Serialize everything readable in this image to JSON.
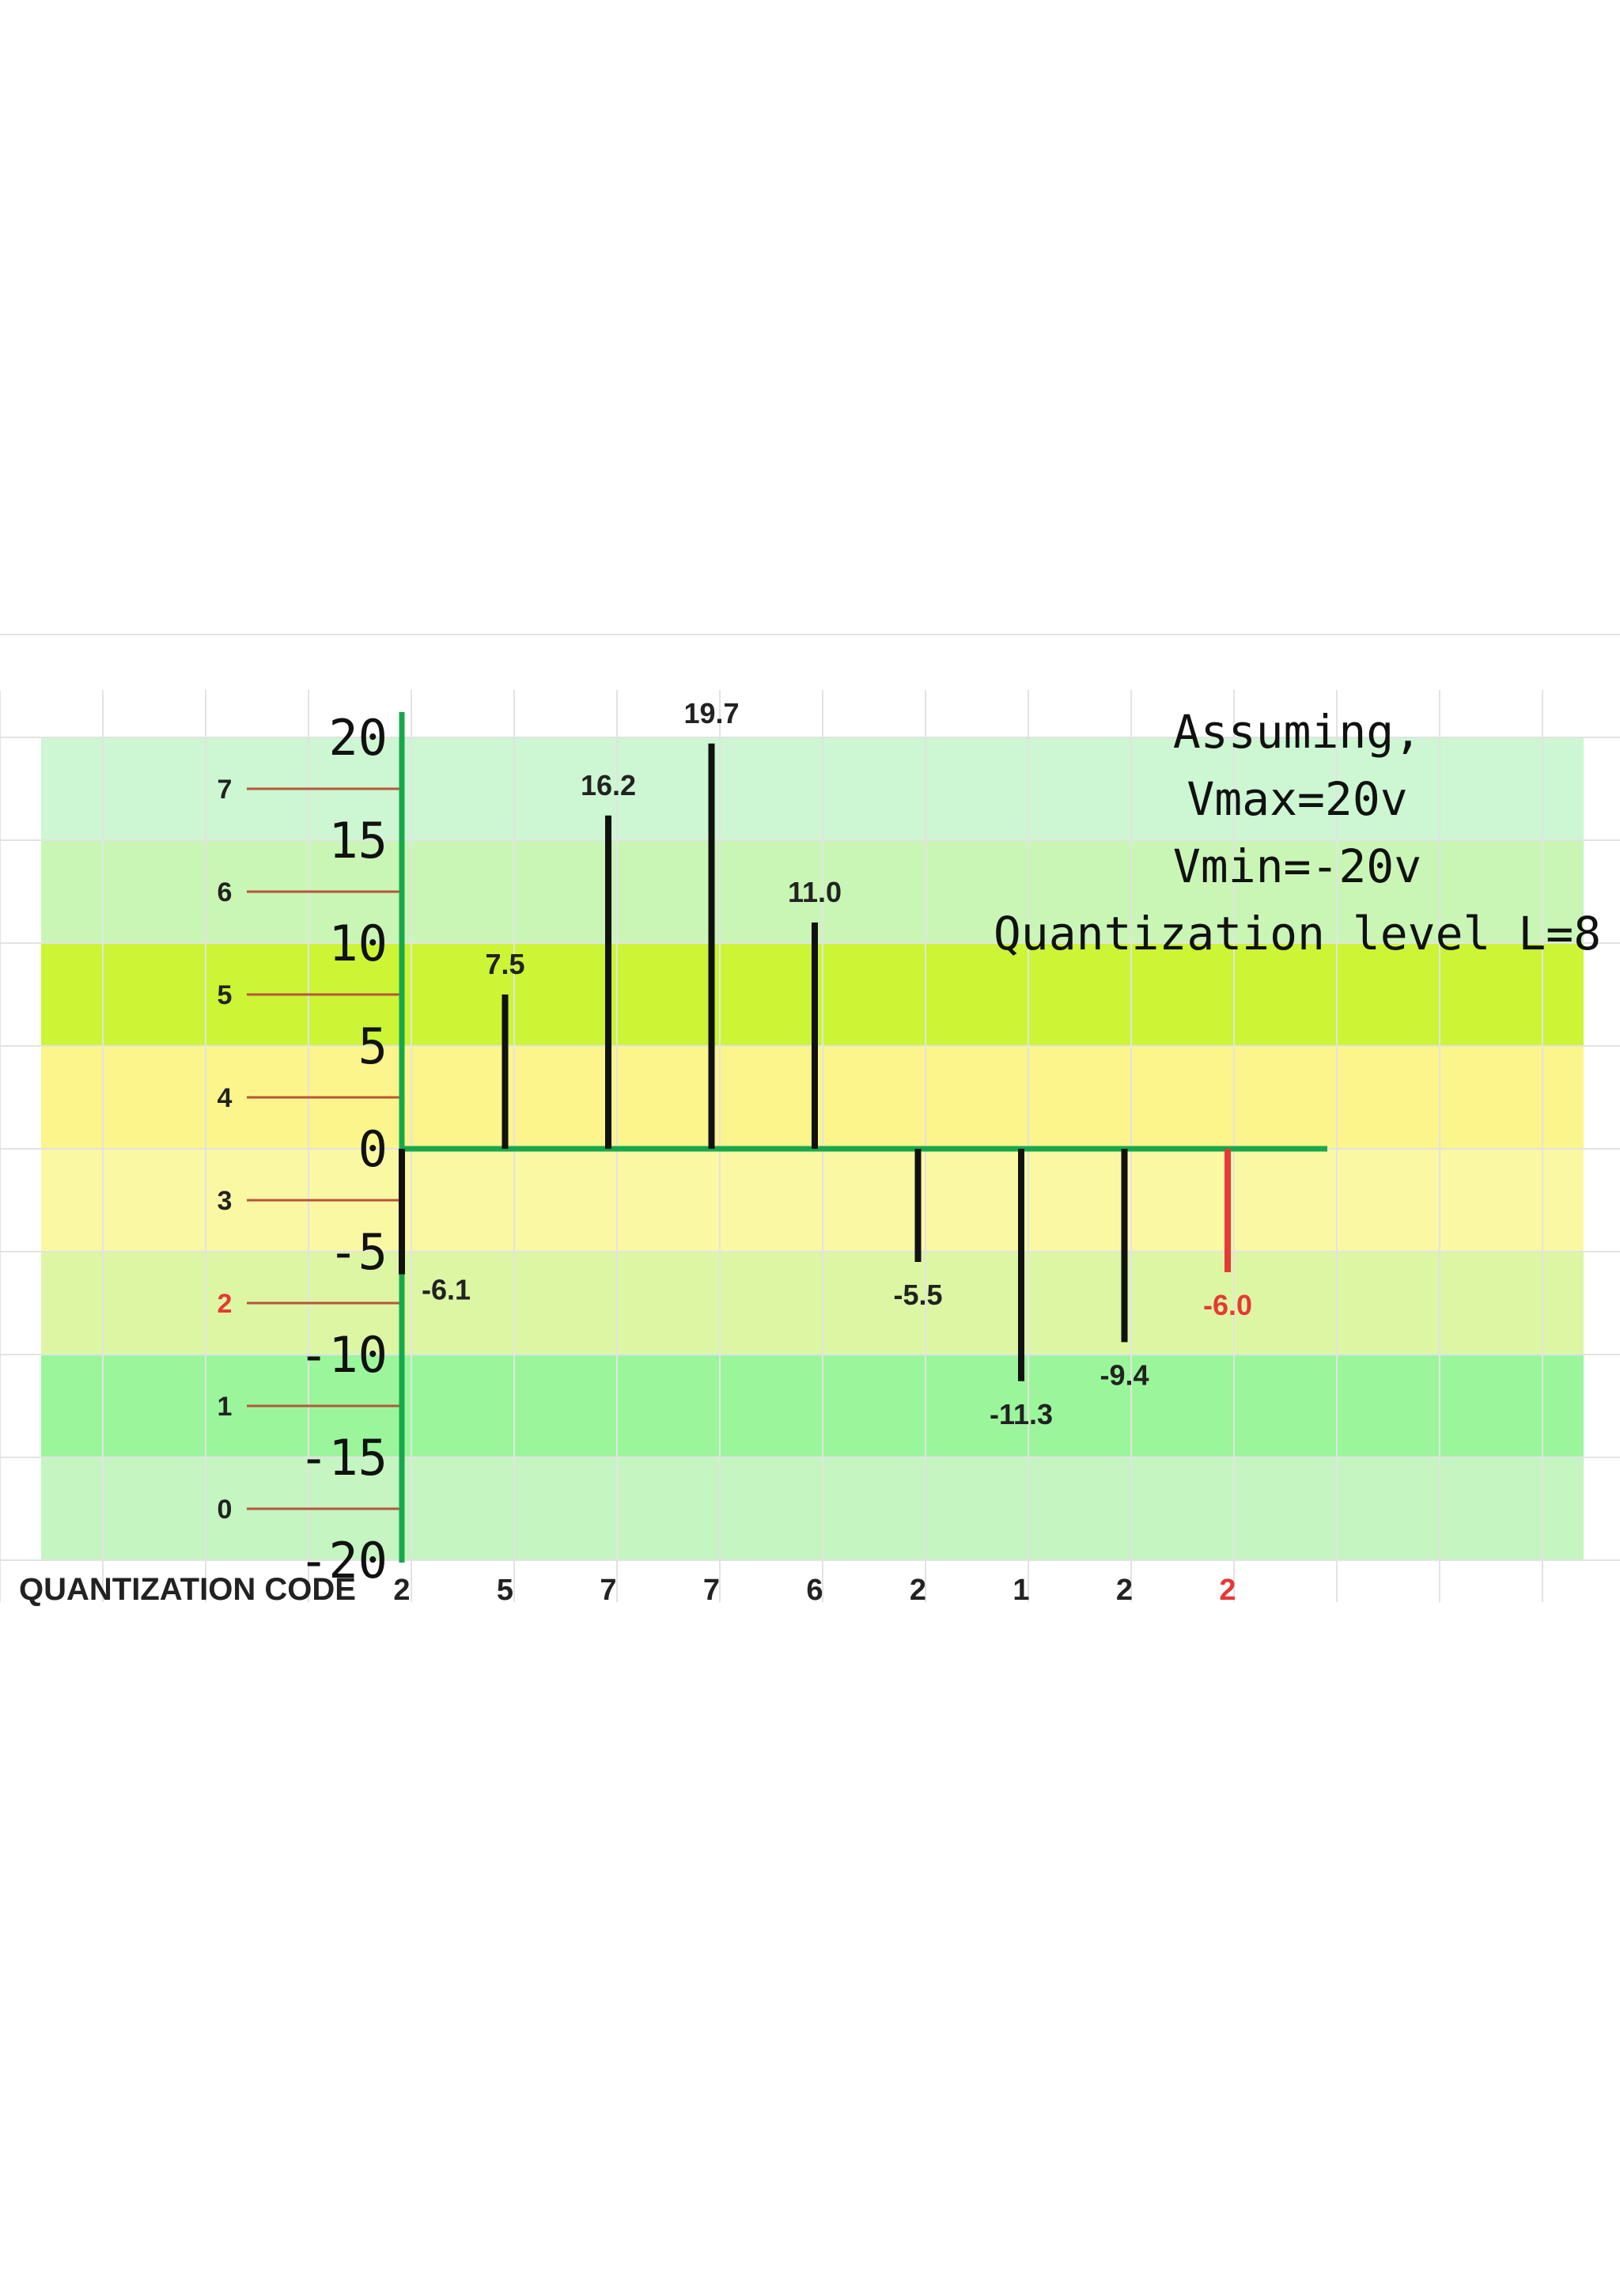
{
  "chart_data": {
    "type": "bar",
    "x_axis_title": "QUANTIZATION CODE",
    "y_ticks": [
      "20",
      "15",
      "10",
      "5",
      "0",
      "-5",
      "-10",
      "-15",
      "-20"
    ],
    "ylim": [
      -20,
      20
    ],
    "quantization_levels": [
      "0",
      "1",
      "2",
      "3",
      "4",
      "5",
      "6",
      "7"
    ],
    "highlighted_level": "2",
    "samples": [
      {
        "value": -6.1,
        "label": "-6.1",
        "code": "2",
        "highlight": false
      },
      {
        "value": 7.5,
        "label": "7.5",
        "code": "5",
        "highlight": false
      },
      {
        "value": 16.2,
        "label": "16.2",
        "code": "7",
        "highlight": false
      },
      {
        "value": 19.7,
        "label": "19.7",
        "code": "7",
        "highlight": false
      },
      {
        "value": 11.0,
        "label": "11.0",
        "code": "6",
        "highlight": false
      },
      {
        "value": -5.5,
        "label": "-5.5",
        "code": "2",
        "highlight": false
      },
      {
        "value": -11.3,
        "label": "-11.3",
        "code": "1",
        "highlight": false
      },
      {
        "value": -9.4,
        "label": "-9.4",
        "code": "2",
        "highlight": false
      },
      {
        "value": -6.0,
        "label": "-6.0",
        "code": "2",
        "highlight": true
      }
    ],
    "annotation_lines": [
      "Assuming,",
      "Vmax=20v",
      "Vmin=-20v",
      "Quantization level L=8"
    ],
    "band_colors": [
      "#ccf7d2",
      "#c9f6b5",
      "#cbf535",
      "#fbf58b",
      "#fbf8a4",
      "#ddf6a4",
      "#9bf69b",
      "#c5f5c0"
    ],
    "colors": {
      "axis": "#17a84c",
      "stem": "#111111",
      "highlight": "#e53935",
      "level_tick": "#b5563a"
    }
  }
}
